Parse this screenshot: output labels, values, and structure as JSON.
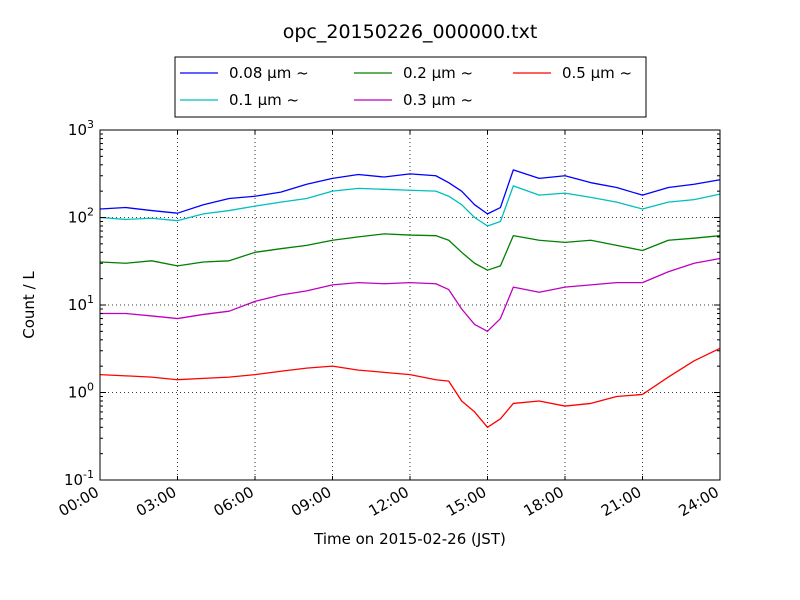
{
  "chart_data": {
    "type": "line",
    "title": "opc_20150226_000000.txt",
    "xlabel": "Time on 2015-02-26 (JST)",
    "ylabel": "Count / L",
    "yscale": "log",
    "ylim": [
      0.1,
      1000
    ],
    "xlim": [
      "2015-02-26 00:00",
      "2015-02-27 00:00"
    ],
    "grid": true,
    "legend_position": "top",
    "x_tick_labels": [
      "00:00",
      "03:00",
      "06:00",
      "09:00",
      "12:00",
      "15:00",
      "18:00",
      "21:00",
      "24:00"
    ],
    "y_tick_labels": [
      {
        "base": "10",
        "exp": "-1"
      },
      {
        "base": "10",
        "exp": "0"
      },
      {
        "base": "10",
        "exp": "1"
      },
      {
        "base": "10",
        "exp": "2"
      },
      {
        "base": "10",
        "exp": "3"
      }
    ],
    "x": [
      "00:00",
      "01:00",
      "02:00",
      "03:00",
      "04:00",
      "05:00",
      "06:00",
      "07:00",
      "08:00",
      "09:00",
      "10:00",
      "11:00",
      "12:00",
      "13:00",
      "13:30",
      "14:00",
      "14:30",
      "15:00",
      "15:30",
      "16:00",
      "17:00",
      "18:00",
      "19:00",
      "20:00",
      "21:00",
      "22:00",
      "23:00",
      "24:00"
    ],
    "series": [
      {
        "name": "0.08 μm ~",
        "color": "#0000ff",
        "values": [
          125,
          130,
          120,
          112,
          140,
          165,
          175,
          195,
          240,
          280,
          310,
          290,
          315,
          300,
          250,
          200,
          140,
          110,
          130,
          350,
          280,
          300,
          250,
          220,
          180,
          220,
          240,
          270
        ]
      },
      {
        "name": "0.1 μm ~",
        "color": "#00bfbf",
        "values": [
          100,
          95,
          98,
          92,
          110,
          120,
          135,
          150,
          165,
          200,
          215,
          210,
          205,
          200,
          175,
          140,
          100,
          80,
          90,
          230,
          180,
          190,
          170,
          150,
          125,
          150,
          160,
          185
        ]
      },
      {
        "name": "0.2 μm ~",
        "color": "#008000",
        "values": [
          31,
          30,
          32,
          28,
          31,
          32,
          40,
          44,
          48,
          55,
          60,
          65,
          63,
          62,
          55,
          40,
          30,
          25,
          28,
          62,
          55,
          52,
          55,
          48,
          42,
          55,
          58,
          62
        ]
      },
      {
        "name": "0.3 μm ~",
        "color": "#bf00bf",
        "values": [
          8,
          8,
          7.5,
          7,
          7.8,
          8.5,
          11,
          13,
          14.5,
          17,
          18,
          17.5,
          18,
          17.5,
          15,
          9,
          6,
          5,
          7,
          16,
          14,
          16,
          17,
          18,
          18,
          24,
          30,
          34
        ]
      },
      {
        "name": "0.5 μm ~",
        "color": "#ff0000",
        "values": [
          1.6,
          1.55,
          1.5,
          1.4,
          1.45,
          1.5,
          1.6,
          1.75,
          1.9,
          2.0,
          1.8,
          1.7,
          1.6,
          1.4,
          1.35,
          0.8,
          0.6,
          0.4,
          0.5,
          0.75,
          0.8,
          0.7,
          0.75,
          0.9,
          0.95,
          1.5,
          2.3,
          3.2
        ]
      }
    ]
  }
}
